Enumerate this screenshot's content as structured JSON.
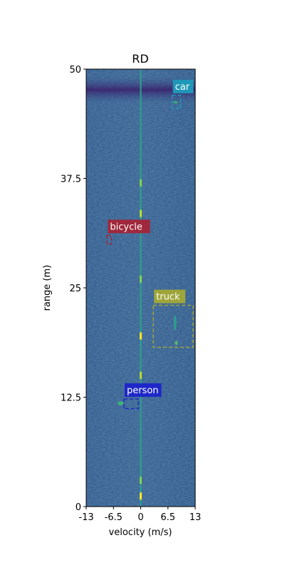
{
  "chart_data": {
    "type": "heatmap",
    "title": "RD",
    "xlabel": "velocity (m/s)",
    "ylabel": "range (m)",
    "xlim": [
      -13,
      13
    ],
    "ylim": [
      0,
      50
    ],
    "x_ticks": [
      "-13",
      "-6.5",
      "0",
      "6.5",
      "13"
    ],
    "x_tick_values": [
      -13,
      -6.5,
      0,
      6.5,
      13
    ],
    "y_ticks": [
      "0",
      "12.5",
      "25",
      "37.5",
      "50"
    ],
    "y_tick_values": [
      0,
      12.5,
      25,
      37.5,
      50
    ],
    "colormap": "viridis",
    "grid": false,
    "detections": [
      {
        "label": "car",
        "color": "#1f97b8",
        "velocity_range": [
          7.5,
          9.5
        ],
        "range_range": [
          45.5,
          47
        ]
      },
      {
        "label": "bicycle",
        "color": "#a0283c",
        "velocity_range": [
          -8,
          -7
        ],
        "range_range": [
          30,
          31
        ]
      },
      {
        "label": "truck",
        "color": "#9ea63a",
        "velocity_range": [
          3,
          12.5
        ],
        "range_range": [
          18.2,
          23
        ]
      },
      {
        "label": "person",
        "color": "#1e28c8",
        "velocity_range": [
          -4,
          -0.5
        ],
        "range_range": [
          11.2,
          12.3
        ]
      }
    ]
  }
}
